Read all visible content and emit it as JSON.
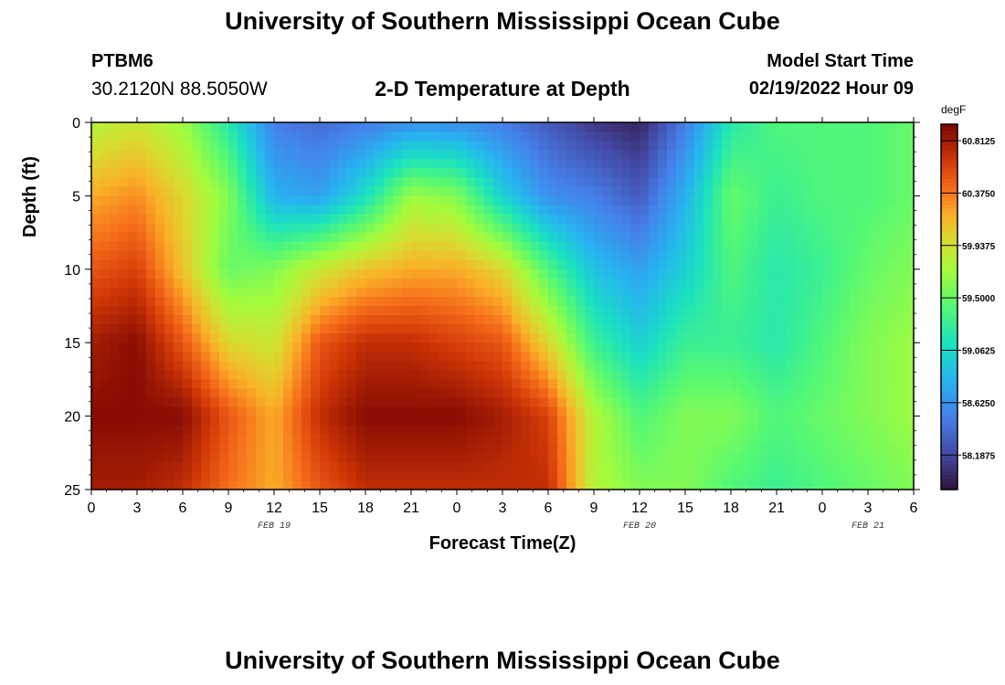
{
  "header": {
    "title": "University of Southern Mississippi Ocean Cube",
    "station": "PTBM6",
    "coords": "30.2120N  88.5050W",
    "subtitle": "2-D Temperature at Depth",
    "model_start_label": "Model Start Time",
    "model_start_value": "02/19/2022 Hour 09"
  },
  "footer": {
    "title": "University of Southern Mississippi Ocean Cube"
  },
  "chart_data": {
    "type": "heatmap",
    "title": "2-D Temperature at Depth",
    "xlabel": "Forecast Time(Z)",
    "ylabel": "Depth (ft)",
    "x_tick_labels": [
      "0",
      "3",
      "6",
      "9",
      "12",
      "15",
      "18",
      "21",
      "0",
      "3",
      "6",
      "9",
      "12",
      "15",
      "18",
      "21",
      "0",
      "3",
      "6"
    ],
    "date_labels": [
      {
        "label": "FEB 19",
        "at_tick": 4
      },
      {
        "label": "FEB 20",
        "at_tick": 12
      },
      {
        "label": "FEB 21",
        "at_tick": 17
      }
    ],
    "y_ticks": [
      0,
      5,
      10,
      15,
      20,
      25
    ],
    "ylim": [
      0,
      25
    ],
    "y_inverted": true,
    "colorbar": {
      "unit": "degF",
      "min": 57.9,
      "max": 60.95,
      "labels": [
        "60.8125",
        "60.3750",
        "59.9375",
        "59.5000",
        "59.0625",
        "58.6250",
        "58.1875"
      ],
      "colormap": "turbo"
    },
    "grid": false,
    "anchor_x_hours": [
      0,
      3,
      6,
      9,
      12,
      15,
      18,
      21,
      24,
      27,
      30,
      33,
      36,
      39,
      42,
      45,
      48,
      51,
      54
    ],
    "anchor_depths_ft": [
      0,
      5,
      10,
      15,
      20,
      25
    ],
    "temperatures_degF": [
      [
        59.8,
        60.2,
        60.5,
        60.8,
        60.9,
        60.8
      ],
      [
        59.9,
        60.3,
        60.6,
        60.9,
        60.9,
        60.8
      ],
      [
        59.7,
        60.0,
        60.1,
        60.5,
        60.9,
        60.7
      ],
      [
        59.2,
        59.6,
        59.5,
        60.0,
        60.5,
        60.4
      ],
      [
        58.5,
        58.8,
        59.6,
        59.9,
        60.2,
        60.2
      ],
      [
        58.4,
        58.7,
        59.9,
        60.5,
        60.7,
        60.5
      ],
      [
        58.5,
        59.1,
        60.1,
        60.7,
        60.9,
        60.7
      ],
      [
        58.6,
        59.7,
        60.2,
        60.7,
        60.9,
        60.7
      ],
      [
        58.6,
        59.6,
        60.2,
        60.6,
        60.9,
        60.7
      ],
      [
        58.5,
        59.0,
        60.0,
        60.5,
        60.8,
        60.7
      ],
      [
        58.3,
        58.6,
        59.4,
        60.0,
        60.6,
        60.7
      ],
      [
        58.1,
        58.5,
        58.9,
        59.3,
        59.8,
        59.8
      ],
      [
        58.0,
        58.3,
        58.7,
        59.0,
        59.4,
        59.6
      ],
      [
        58.5,
        58.8,
        59.0,
        59.3,
        59.6,
        59.6
      ],
      [
        59.2,
        59.5,
        59.4,
        59.3,
        59.6,
        59.4
      ],
      [
        59.4,
        59.3,
        59.2,
        59.2,
        59.4,
        59.3
      ],
      [
        59.4,
        59.4,
        59.3,
        59.4,
        59.5,
        59.4
      ],
      [
        59.4,
        59.4,
        59.5,
        59.6,
        59.6,
        59.5
      ],
      [
        59.5,
        59.5,
        59.6,
        59.7,
        59.7,
        59.6
      ]
    ]
  }
}
